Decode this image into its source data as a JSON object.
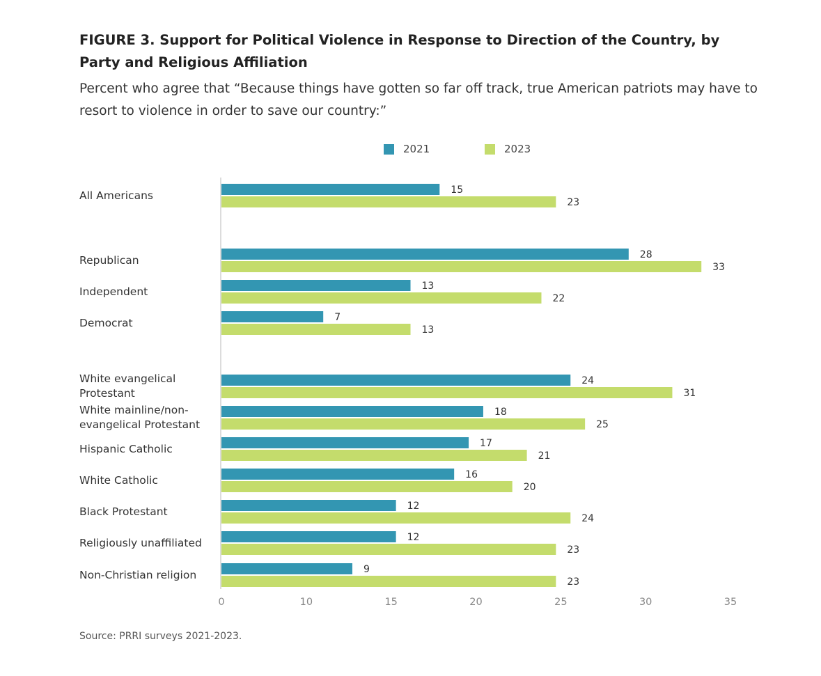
{
  "chart_data": {
    "type": "bar",
    "orientation": "horizontal",
    "title": "FIGURE 3.  Support for Political Violence in Response to Direction of the Country, by Party and Religious Affiliation",
    "subtitle": "Percent who agree that “Because things have gotten so far off track, true American patriots may have to resort to violence in order to save our country:”",
    "categories": [
      "All Americans",
      "Republican",
      "Independent",
      "Democrat",
      "White evangelical Protestant",
      "White mainline/non-evangelical Protestant",
      "Hispanic Catholic",
      "White Catholic",
      "Black Protestant",
      "Religiously unaffiliated",
      "Non-Christian religion"
    ],
    "category_lines": [
      [
        "All Americans"
      ],
      [
        "Republican"
      ],
      [
        "Independent"
      ],
      [
        "Democrat"
      ],
      [
        "White evangelical",
        "Protestant"
      ],
      [
        "White mainline/non-",
        "evangelical Protestant"
      ],
      [
        "Hispanic Catholic"
      ],
      [
        "White Catholic"
      ],
      [
        "Black Protestant"
      ],
      [
        "Religiously unaffiliated"
      ],
      [
        "Non-Christian religion"
      ]
    ],
    "series": [
      {
        "name": "2021",
        "color": "#3396b2",
        "values": [
          15,
          28,
          13,
          7,
          24,
          18,
          17,
          16,
          12,
          12,
          9
        ]
      },
      {
        "name": "2023",
        "color": "#c4dc6c",
        "values": [
          23,
          33,
          22,
          13,
          31,
          25,
          21,
          20,
          24,
          23,
          23
        ]
      }
    ],
    "xlim": [
      0,
      35
    ],
    "xtick_labels": [
      "0",
      "10",
      "15",
      "20",
      "25",
      "30",
      "35"
    ],
    "xlabel": "",
    "ylabel": "",
    "legend_position": "top",
    "grid": false
  },
  "source": "Source: PRRI surveys 2021-2023."
}
